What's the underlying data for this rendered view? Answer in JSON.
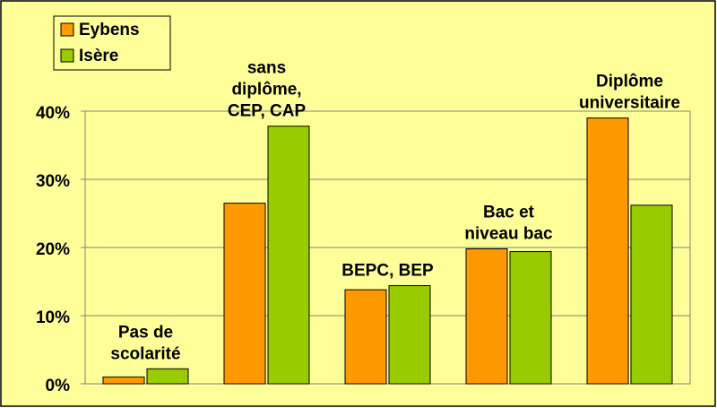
{
  "chart_data": {
    "type": "bar",
    "categories": [
      "Pas de\nscolarité",
      "sans\ndiplôme,\nCEP, CAP",
      "BEPC, BEP",
      "Bac et\nniveau bac",
      "Diplôme\nuniversitaire"
    ],
    "series": [
      {
        "name": "Eybens",
        "color": "#ff9900",
        "values": [
          1,
          26.5,
          13.8,
          19.8,
          39
        ]
      },
      {
        "name": "Isère",
        "color": "#99cc00",
        "values": [
          2.2,
          37.8,
          14.4,
          19.4,
          26.2
        ]
      }
    ],
    "ylim": [
      0,
      40
    ],
    "yticks": [
      {
        "value": 0,
        "label": "0%"
      },
      {
        "value": 10,
        "label": "10%"
      },
      {
        "value": 20,
        "label": "20%"
      },
      {
        "value": 30,
        "label": "30%"
      },
      {
        "value": 40,
        "label": "40%"
      }
    ],
    "grid": true,
    "legend": "top-left"
  }
}
